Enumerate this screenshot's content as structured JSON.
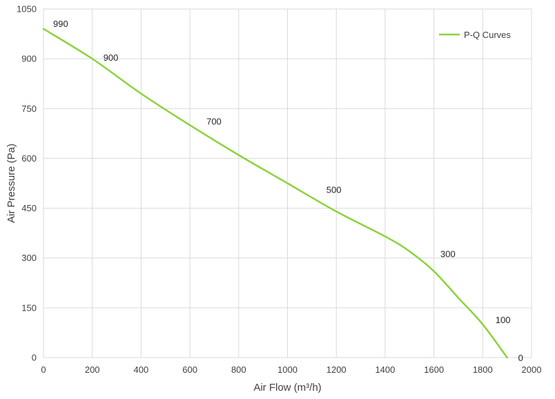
{
  "chart_data": {
    "type": "line",
    "xlabel": "Air Flow  (m³/h)",
    "ylabel": "Air Pressure  (Pa)",
    "xlim": [
      0,
      2000
    ],
    "ylim": [
      0,
      1050
    ],
    "xticks": [
      0,
      200,
      400,
      600,
      800,
      1000,
      1200,
      1400,
      1600,
      1800,
      2000
    ],
    "yticks": [
      0,
      150,
      300,
      450,
      600,
      750,
      900,
      1050
    ],
    "grid": true,
    "legend_position": "top-right",
    "series": [
      {
        "name": "P-Q Curves",
        "color": "#8cd23c",
        "x": [
          0,
          200,
          400,
          600,
          800,
          1000,
          1200,
          1400,
          1500,
          1600,
          1700,
          1800,
          1900
        ],
        "y": [
          990,
          900,
          795,
          700,
          610,
          525,
          440,
          365,
          320,
          260,
          180,
          100,
          0
        ]
      }
    ],
    "annotations": [
      {
        "text": "990",
        "x": 0,
        "y": 990
      },
      {
        "text": "900",
        "x": 200,
        "y": 900
      },
      {
        "text": "700",
        "x": 600,
        "y": 700
      },
      {
        "text": "500",
        "x": 1080,
        "y": 490
      },
      {
        "text": "300",
        "x": 1570,
        "y": 300
      },
      {
        "text": "100",
        "x": 1790,
        "y": 100
      },
      {
        "text": "0",
        "x": 1900,
        "y": 0
      }
    ]
  }
}
